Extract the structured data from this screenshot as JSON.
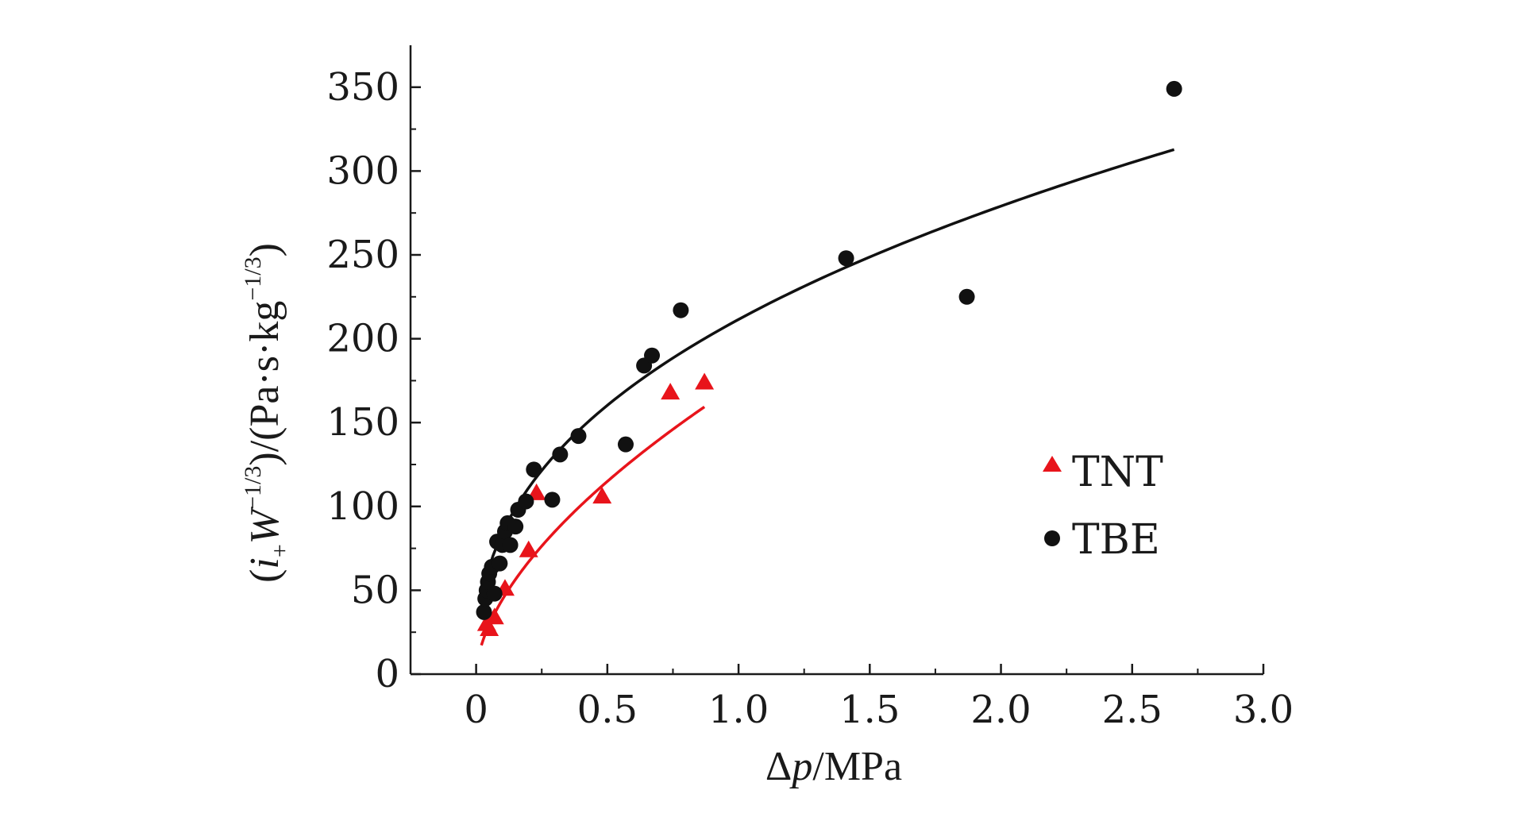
{
  "chart_data": {
    "type": "scatter",
    "title": "",
    "xlabel": "Δp/MPa",
    "xlabel_parts": {
      "delta": "Δ",
      "var": "p",
      "unit": "/MPa"
    },
    "ylabel": "(i₊W⁻¹ᐟ³)/(Pa·s·kg⁻¹ᐟ³)",
    "ylabel_parts": {
      "open": "(",
      "var_i": "i",
      "sub": "+",
      "var_w": "W",
      "sup1": "−1/3",
      "mid": ")/(Pa·s·kg",
      "sup2": "−1/3",
      "close": ")"
    },
    "xlim": [
      -0.25,
      3.0
    ],
    "ylim": [
      0,
      375
    ],
    "x_ticks": [
      "0",
      "0.5",
      "1.0",
      "1.5",
      "2.0",
      "2.5",
      "3.0"
    ],
    "y_ticks": [
      "0",
      "50",
      "100",
      "150",
      "200",
      "250",
      "300",
      "350"
    ],
    "grid": false,
    "legend_position": "right",
    "series": [
      {
        "name": "TNT",
        "marker": "triangle",
        "color": "#e8141b",
        "points": [
          [
            0.04,
            30
          ],
          [
            0.05,
            27
          ],
          [
            0.07,
            34
          ],
          [
            0.11,
            51
          ],
          [
            0.2,
            74
          ],
          [
            0.23,
            108
          ],
          [
            0.48,
            106
          ],
          [
            0.74,
            168
          ],
          [
            0.87,
            174
          ]
        ],
        "fit": {
          "a": 173.0,
          "b": 0.59,
          "x_range": [
            0.02,
            0.87
          ]
        }
      },
      {
        "name": "TBE",
        "marker": "circle",
        "color": "#111111",
        "points": [
          [
            0.03,
            37
          ],
          [
            0.035,
            45
          ],
          [
            0.04,
            50
          ],
          [
            0.045,
            55
          ],
          [
            0.05,
            60
          ],
          [
            0.06,
            64
          ],
          [
            0.07,
            48
          ],
          [
            0.08,
            79
          ],
          [
            0.09,
            66
          ],
          [
            0.1,
            77
          ],
          [
            0.11,
            85
          ],
          [
            0.12,
            90
          ],
          [
            0.13,
            77
          ],
          [
            0.15,
            88
          ],
          [
            0.16,
            98
          ],
          [
            0.19,
            103
          ],
          [
            0.22,
            122
          ],
          [
            0.29,
            104
          ],
          [
            0.32,
            131
          ],
          [
            0.39,
            142
          ],
          [
            0.57,
            137
          ],
          [
            0.64,
            184
          ],
          [
            0.67,
            190
          ],
          [
            0.78,
            217
          ],
          [
            1.41,
            248
          ],
          [
            1.87,
            225
          ],
          [
            2.66,
            349
          ]
        ],
        "fit": {
          "a": 211.5,
          "b": 0.4,
          "x_range": [
            0.02,
            2.66
          ]
        }
      }
    ]
  }
}
